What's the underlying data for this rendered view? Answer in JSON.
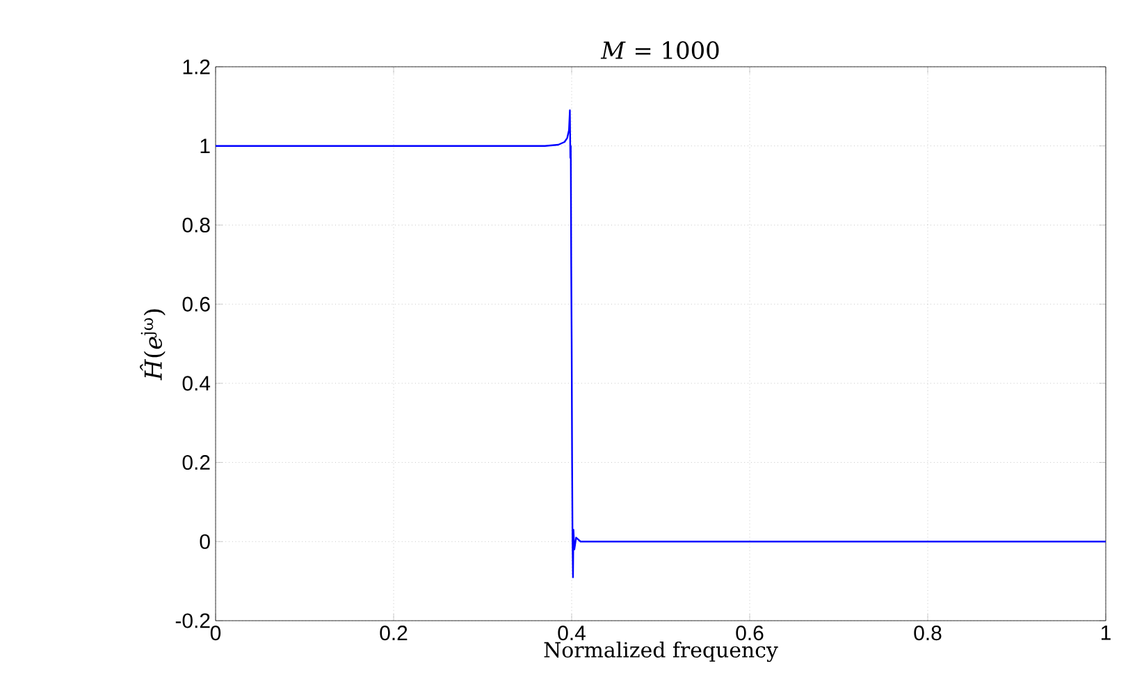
{
  "chart_data": {
    "type": "line",
    "title": "*M* = 1000",
    "xlabel": "Normalized frequency",
    "ylabel": "*Ĥ*(*e*$^{jω}$)",
    "x": [
      0,
      0.1,
      0.2,
      0.3,
      0.37,
      0.385,
      0.392,
      0.395,
      0.397,
      0.398,
      0.3985,
      0.399,
      0.3995,
      0.4,
      0.4005,
      0.401,
      0.4015,
      0.402,
      0.403,
      0.405,
      0.41,
      0.42,
      0.5,
      0.6,
      0.8,
      1
    ],
    "series": [
      {
        "color": "#0000ff",
        "values": [
          1,
          1,
          1,
          1,
          1,
          1.003,
          1.01,
          1.02,
          1.04,
          1.09,
          0.97,
          1.0,
          0.7,
          0.5,
          0.2,
          0.0,
          -0.09,
          0.03,
          -0.02,
          0.01,
          0.0,
          0.0,
          0,
          0,
          0,
          0
        ]
      }
    ],
    "xlim": [
      0,
      1
    ],
    "ylim": [
      -0.2,
      1.2
    ],
    "xticks": [
      0,
      0.2,
      0.4,
      0.6,
      0.8,
      1
    ],
    "yticks": [
      -0.2,
      0,
      0.2,
      0.4,
      0.6,
      0.8,
      1,
      1.2
    ],
    "grid": true,
    "marker": "none",
    "line_style": "solid"
  }
}
